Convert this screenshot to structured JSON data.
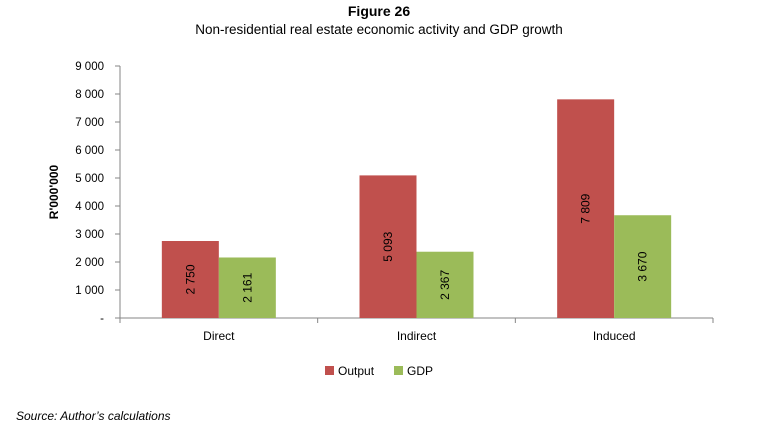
{
  "figure": {
    "number": "Figure 26",
    "title": "Non-residential real estate economic activity and GDP growth",
    "source": "Source: Author’s calculations"
  },
  "chart_data": {
    "type": "bar",
    "title": "Non-residential real estate economic activity and GDP growth",
    "categories": [
      "Direct",
      "Indirect",
      "Induced"
    ],
    "series": [
      {
        "name": "Output",
        "values": [
          2750,
          5093,
          7809
        ],
        "labels": [
          "2 750",
          "5 093",
          "7 809"
        ],
        "color": "#c0504d"
      },
      {
        "name": "GDP",
        "values": [
          2161,
          2367,
          3670
        ],
        "labels": [
          "2 161",
          "2 367",
          "3 670"
        ],
        "color": "#9bbb59"
      }
    ],
    "xlabel": "",
    "ylabel": "R'000'000",
    "ylim": [
      0,
      9000
    ],
    "yticks": [
      0,
      1000,
      2000,
      3000,
      4000,
      5000,
      6000,
      7000,
      8000,
      9000
    ],
    "ytick_labels": [
      "-",
      "1 000",
      "2 000",
      "3 000",
      "4 000",
      "5 000",
      "6 000",
      "7 000",
      "8 000",
      "9 000"
    ],
    "legend": "bottom-center",
    "grid": false
  }
}
